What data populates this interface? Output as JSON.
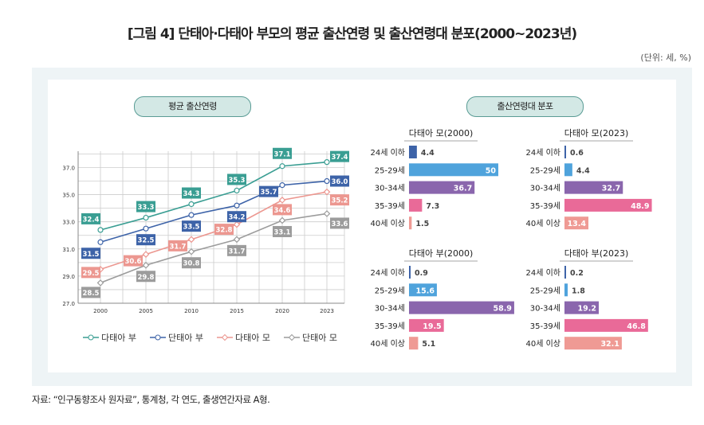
{
  "title": "[그림 4] 단태아·다태아 부모의 평균 출산연령 및 출산연령대 분포(2000~2023년)",
  "unit": "(단위: 세, %)",
  "source": "자료: “인구동향조사 원자료”, 통계청, 각 연도, 출생연간자료 A형.",
  "chart_data": [
    {
      "type": "line",
      "title": "평균 출산연령",
      "categories": [
        "2000",
        "2005",
        "2010",
        "2015",
        "2020",
        "2023"
      ],
      "ylim": [
        27,
        38.2
      ],
      "yticks": [
        "27.0",
        "29.0",
        "31.0",
        "33.0",
        "35.0",
        "37.0"
      ],
      "grid": true,
      "legend": "bottom",
      "series": [
        {
          "name": "다태아 부",
          "color": "#3a9e93",
          "marker": "circle",
          "values": [
            32.4,
            33.3,
            34.3,
            35.3,
            37.1,
            37.4
          ],
          "labels": [
            "32.4",
            "33.3",
            "34.3",
            "35.3",
            "37.1",
            "37.4"
          ]
        },
        {
          "name": "단태아 부",
          "color": "#3d63a8",
          "marker": "circle",
          "values": [
            31.5,
            32.5,
            33.5,
            34.2,
            35.7,
            36.0
          ],
          "labels": [
            "31.5",
            "32.5",
            "33.5",
            "34.2",
            "35.7",
            "36.0"
          ]
        },
        {
          "name": "다태아 모",
          "color": "#ec9790",
          "marker": "diamond",
          "values": [
            29.5,
            30.6,
            31.7,
            32.8,
            34.6,
            35.2
          ],
          "labels": [
            "29.5",
            "30.6",
            "31.7",
            "32.8",
            "34.6",
            "35.2"
          ]
        },
        {
          "name": "단태아 모",
          "color": "#9c9c9c",
          "marker": "diamond",
          "values": [
            28.5,
            29.8,
            30.8,
            31.7,
            33.1,
            33.6
          ],
          "labels": [
            "28.5",
            "29.8",
            "30.8",
            "31.7",
            "33.1",
            "33.6"
          ]
        }
      ]
    },
    {
      "type": "bar",
      "title": "출산연령대 분포",
      "categories": [
        "24세 이하",
        "25-29세",
        "30-34세",
        "35-39세",
        "40세 이상"
      ],
      "colors": [
        "#3d63a8",
        "#4fa3dc",
        "#8a66ad",
        "#e96a98",
        "#ef9a94"
      ],
      "panels": [
        {
          "title": "다태아 모(2000)",
          "values": [
            4.4,
            50,
            36.7,
            7.3,
            1.5
          ],
          "labels": [
            "4.4",
            "50",
            "36.7",
            "7.3",
            "1.5"
          ]
        },
        {
          "title": "다태아 모(2023)",
          "values": [
            0.6,
            4.4,
            32.7,
            48.9,
            13.4
          ],
          "labels": [
            "0.6",
            "4.4",
            "32.7",
            "48.9",
            "13.4"
          ]
        },
        {
          "title": "다태아 부(2000)",
          "values": [
            0.9,
            15.6,
            58.9,
            19.5,
            5.1
          ],
          "labels": [
            "0.9",
            "15.6",
            "58.9",
            "19.5",
            "5.1"
          ]
        },
        {
          "title": "다태아 부(2023)",
          "values": [
            0.2,
            1.8,
            19.2,
            46.8,
            32.1
          ],
          "labels": [
            "0.2",
            "1.8",
            "19.2",
            "46.8",
            "32.1"
          ]
        }
      ]
    }
  ]
}
